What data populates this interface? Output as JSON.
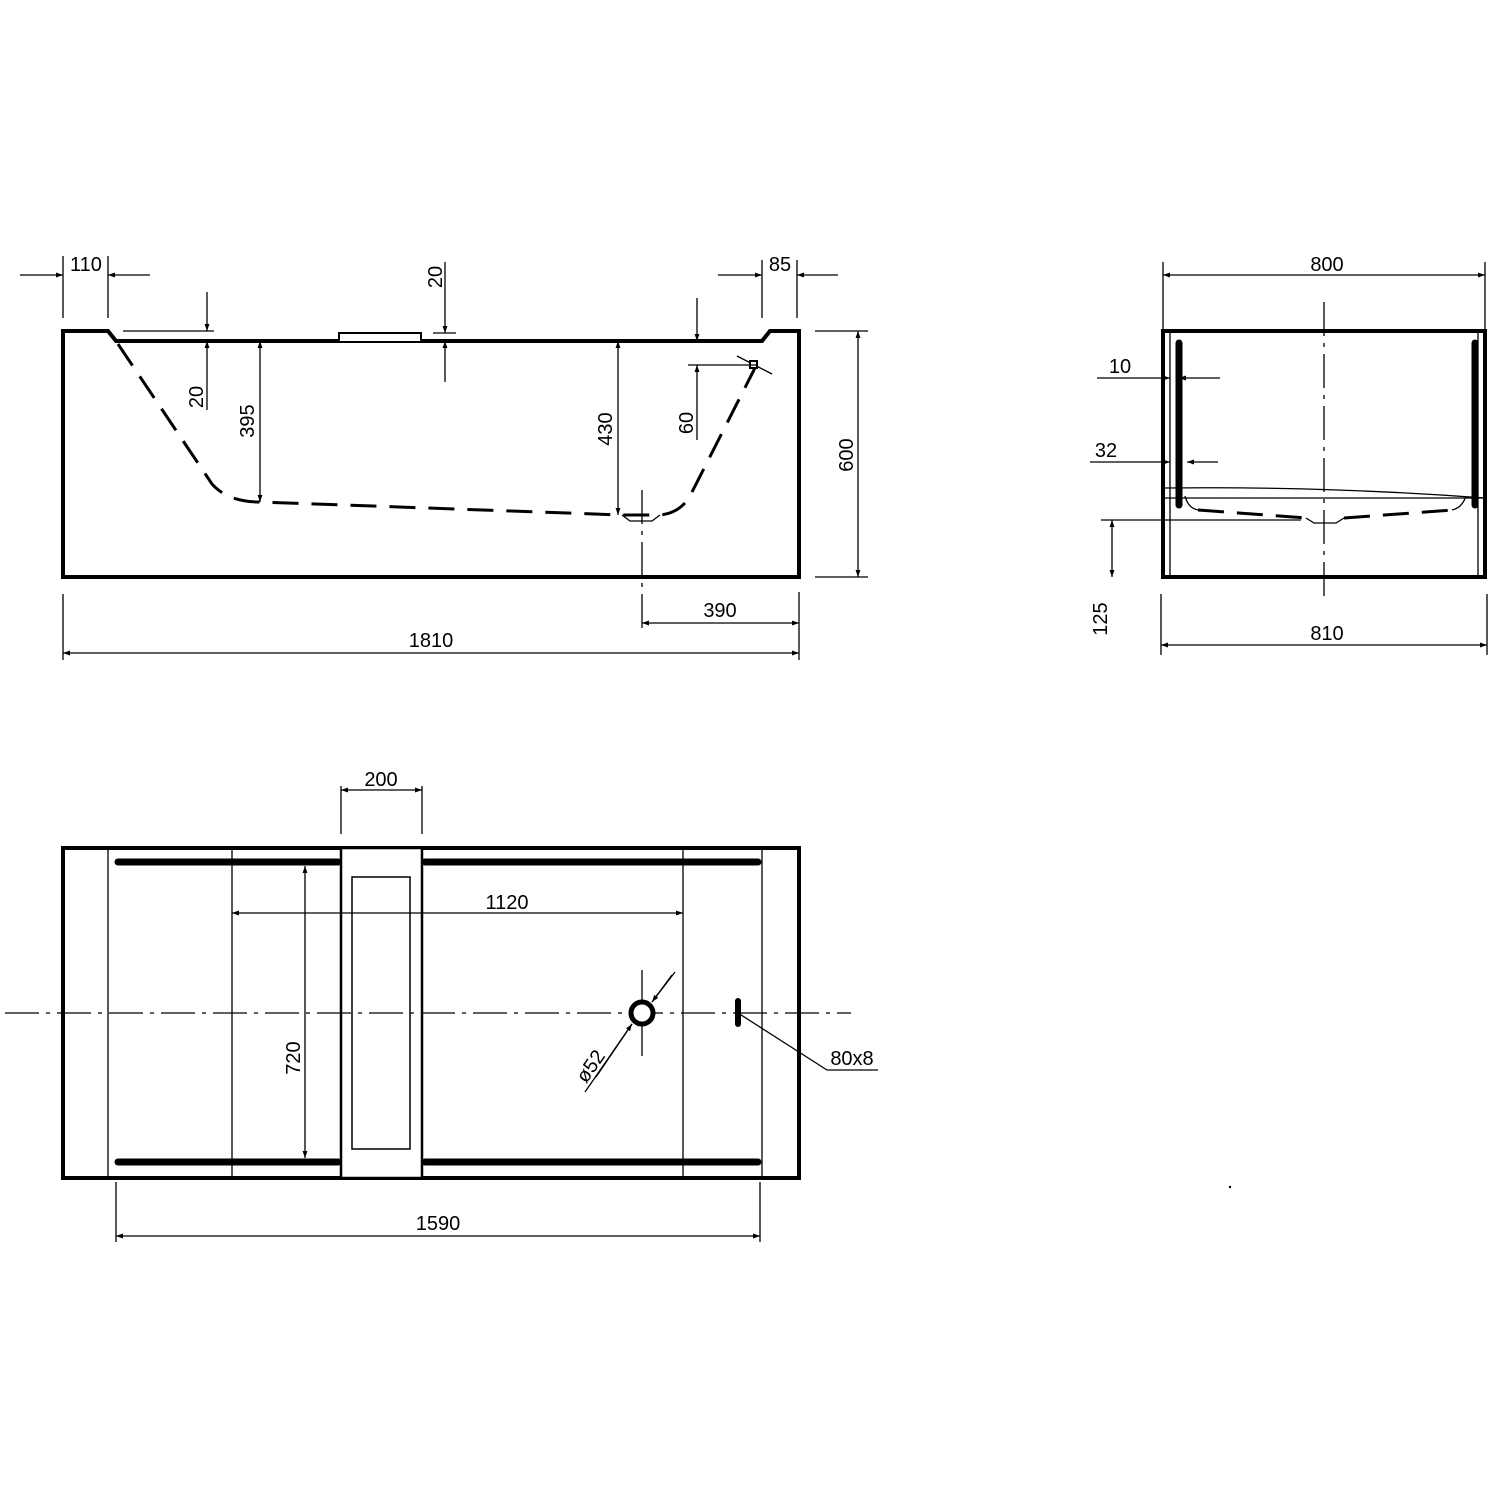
{
  "side_view": {
    "dim_rim_left": "110",
    "dim_rim_right": "85",
    "dim_overflow_offset": "20",
    "dim_rim_to_basin": "20",
    "dim_depth_left": "395",
    "dim_depth_drain": "430",
    "dim_overflow_height": "60",
    "dim_height": "600",
    "dim_drain_offset": "390",
    "dim_length": "1810"
  },
  "end_view": {
    "dim_width_top": "800",
    "dim_handle_inset": "10",
    "dim_handle_width": "32",
    "dim_floor_height": "125",
    "dim_width_bottom": "810"
  },
  "plan_view": {
    "dim_panel_width": "200",
    "dim_inner_length": "1120",
    "dim_inner_width": "720",
    "dim_drain_diameter": "ø52",
    "dim_slot": "80x8",
    "dim_handle_length": "1590"
  }
}
